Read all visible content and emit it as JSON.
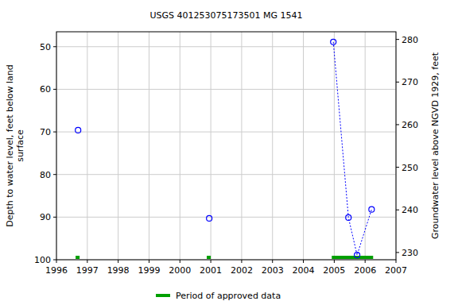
{
  "chart_data": {
    "type": "scatter",
    "title": "USGS 401253075173501 MG  1541",
    "xlabel": null,
    "ylabel": "Depth to water level, feet below land surface",
    "y2label": "Groundwater level above NGVD 1929, feet",
    "xlim": [
      1996,
      2007
    ],
    "xticks": [
      1996,
      1997,
      1998,
      1999,
      2000,
      2001,
      2002,
      2003,
      2004,
      2005,
      2006,
      2007
    ],
    "ylim": [
      100,
      46.5
    ],
    "yticks": [
      50,
      60,
      70,
      80,
      90,
      100
    ],
    "y2lim": [
      228.3,
      281.8
    ],
    "y2ticks": [
      230,
      240,
      250,
      260,
      270,
      280
    ],
    "grid": true,
    "series": [
      {
        "type": "scatter",
        "color": "#0000ff",
        "marker": "circle",
        "x": [
          1996.7,
          2000.95
        ],
        "values": [
          69.6,
          90.3
        ]
      },
      {
        "type": "line",
        "color": "#0000ff",
        "marker": "circle",
        "line_style": "dotted",
        "x": [
          2004.97,
          2005.46,
          2005.74,
          2006.21
        ],
        "values": [
          48.9,
          90.1,
          98.9,
          88.2
        ]
      }
    ],
    "approved_periods": {
      "name": "Period of approved data",
      "color": "#00a000",
      "ranges": [
        [
          1996.62,
          1996.75
        ],
        [
          2000.87,
          2001.0
        ],
        [
          2004.92,
          2006.26
        ]
      ]
    }
  }
}
